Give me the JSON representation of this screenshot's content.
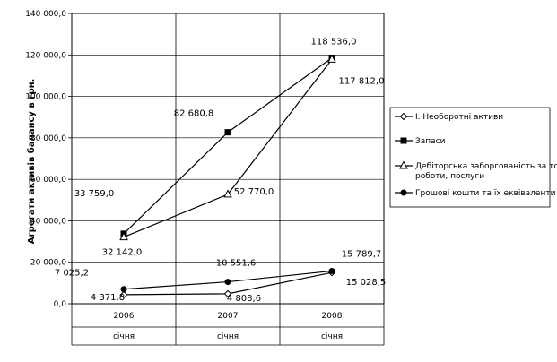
{
  "chart_data": {
    "type": "line",
    "title": "",
    "ylabel": "Агрегати активів балансу в грн.",
    "xlabel": "",
    "categories": [
      "2006",
      "2007",
      "2008"
    ],
    "category_sublabels": [
      "січня",
      "січня",
      "січня"
    ],
    "ylim": [
      0,
      140000
    ],
    "y_ticks": [
      "0,0",
      "20 000,0",
      "40 000,0",
      "60 000,0",
      "80 000,0",
      "100 000,0",
      "120 000,0",
      "140 000,0"
    ],
    "grid": true,
    "legend_position": "right",
    "series": [
      {
        "name": "І. Необоротні активи",
        "marker": "diamond-open",
        "values": [
          4371.8,
          4808.6,
          15028.5
        ],
        "labels": [
          "4 371,8",
          "4 808,6",
          "15 028,5"
        ]
      },
      {
        "name": "Запаси",
        "marker": "square-filled",
        "values": [
          33759.0,
          82680.8,
          118536.0
        ],
        "labels": [
          "33 759,0",
          "82 680,8",
          "118 536,0"
        ]
      },
      {
        "name": "Дебіторська заборгованість за товари, роботи, послуги",
        "marker": "triangle-open",
        "values": [
          32142.0,
          52770.0,
          117812.0
        ],
        "labels": [
          "32 142,0",
          "52 770,0",
          "117 812,0"
        ]
      },
      {
        "name": "Грошові кошти та їх еквіваленти",
        "marker": "circle-filled",
        "values": [
          7025.2,
          10551.6,
          15789.7
        ],
        "labels": [
          "7 025,2",
          "10 551,6",
          "15 789,7"
        ]
      }
    ]
  }
}
